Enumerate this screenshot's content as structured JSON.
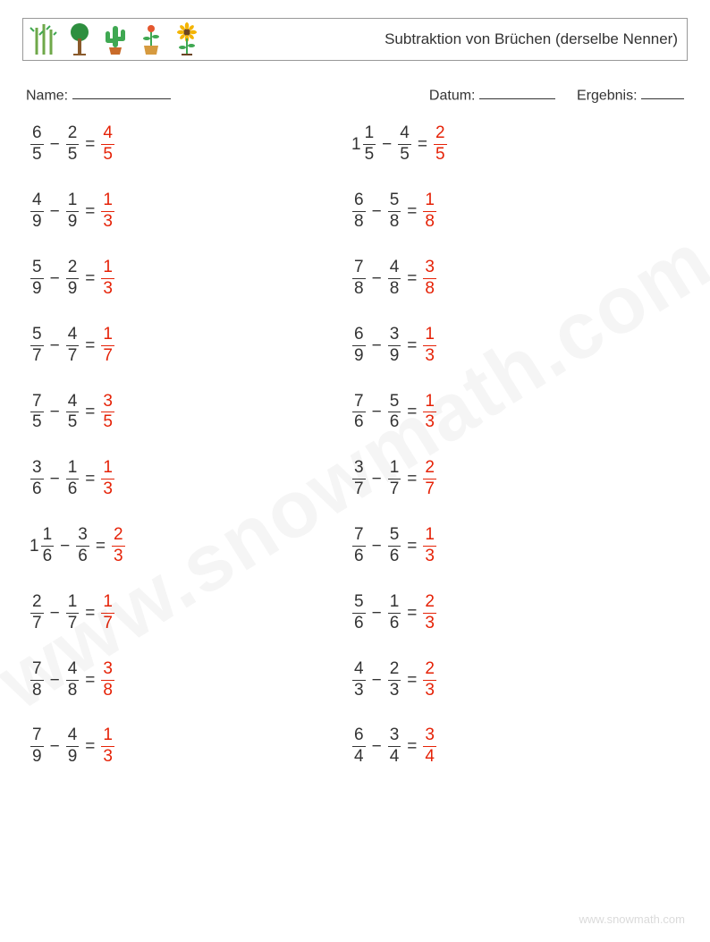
{
  "header": {
    "title": "Subtraktion von Brüchen (derselbe Nenner)"
  },
  "info": {
    "name_label": "Name:",
    "date_label": "Datum:",
    "result_label": "Ergebnis:"
  },
  "icons": {
    "bamboo_color": "#6fa84a",
    "tree_trunk": "#8a5a2b",
    "tree_leaf": "#2e8f3f",
    "cactus_color": "#3fa852",
    "cactus_pot": "#c96b2a",
    "flowerpot_pot": "#d69a3f",
    "flowerpot_stem": "#3fa852",
    "flowerpot_bloom": "#e4572e",
    "sunflower_petal": "#f4b400",
    "sunflower_center": "#6b4423",
    "sunflower_leaf": "#3fa852"
  },
  "style": {
    "text_color": "#333333",
    "answer_color": "#e52207",
    "border_color": "#999999",
    "background": "#ffffff",
    "font_size_body": 19,
    "font_size_title": 17,
    "font_size_info": 16,
    "underline_name_w": 110,
    "underline_date_w": 85,
    "underline_result_w": 48
  },
  "columns": [
    [
      {
        "w1": "",
        "n1": "6",
        "d1": "5",
        "n2": "2",
        "d2": "5",
        "an": "4",
        "ad": "5"
      },
      {
        "w1": "",
        "n1": "4",
        "d1": "9",
        "n2": "1",
        "d2": "9",
        "an": "1",
        "ad": "3"
      },
      {
        "w1": "",
        "n1": "5",
        "d1": "9",
        "n2": "2",
        "d2": "9",
        "an": "1",
        "ad": "3"
      },
      {
        "w1": "",
        "n1": "5",
        "d1": "7",
        "n2": "4",
        "d2": "7",
        "an": "1",
        "ad": "7"
      },
      {
        "w1": "",
        "n1": "7",
        "d1": "5",
        "n2": "4",
        "d2": "5",
        "an": "3",
        "ad": "5"
      },
      {
        "w1": "",
        "n1": "3",
        "d1": "6",
        "n2": "1",
        "d2": "6",
        "an": "1",
        "ad": "3"
      },
      {
        "w1": "1",
        "n1": "1",
        "d1": "6",
        "n2": "3",
        "d2": "6",
        "an": "2",
        "ad": "3"
      },
      {
        "w1": "",
        "n1": "2",
        "d1": "7",
        "n2": "1",
        "d2": "7",
        "an": "1",
        "ad": "7"
      },
      {
        "w1": "",
        "n1": "7",
        "d1": "8",
        "n2": "4",
        "d2": "8",
        "an": "3",
        "ad": "8"
      },
      {
        "w1": "",
        "n1": "7",
        "d1": "9",
        "n2": "4",
        "d2": "9",
        "an": "1",
        "ad": "3"
      }
    ],
    [
      {
        "w1": "1",
        "n1": "1",
        "d1": "5",
        "n2": "4",
        "d2": "5",
        "an": "2",
        "ad": "5"
      },
      {
        "w1": "",
        "n1": "6",
        "d1": "8",
        "n2": "5",
        "d2": "8",
        "an": "1",
        "ad": "8"
      },
      {
        "w1": "",
        "n1": "7",
        "d1": "8",
        "n2": "4",
        "d2": "8",
        "an": "3",
        "ad": "8"
      },
      {
        "w1": "",
        "n1": "6",
        "d1": "9",
        "n2": "3",
        "d2": "9",
        "an": "1",
        "ad": "3"
      },
      {
        "w1": "",
        "n1": "7",
        "d1": "6",
        "n2": "5",
        "d2": "6",
        "an": "1",
        "ad": "3"
      },
      {
        "w1": "",
        "n1": "3",
        "d1": "7",
        "n2": "1",
        "d2": "7",
        "an": "2",
        "ad": "7"
      },
      {
        "w1": "",
        "n1": "7",
        "d1": "6",
        "n2": "5",
        "d2": "6",
        "an": "1",
        "ad": "3"
      },
      {
        "w1": "",
        "n1": "5",
        "d1": "6",
        "n2": "1",
        "d2": "6",
        "an": "2",
        "ad": "3"
      },
      {
        "w1": "",
        "n1": "4",
        "d1": "3",
        "n2": "2",
        "d2": "3",
        "an": "2",
        "ad": "3"
      },
      {
        "w1": "",
        "n1": "6",
        "d1": "4",
        "n2": "3",
        "d2": "4",
        "an": "3",
        "ad": "4"
      }
    ]
  ],
  "watermark": "www.snowmath.com",
  "footer": "www.snowmath.com"
}
